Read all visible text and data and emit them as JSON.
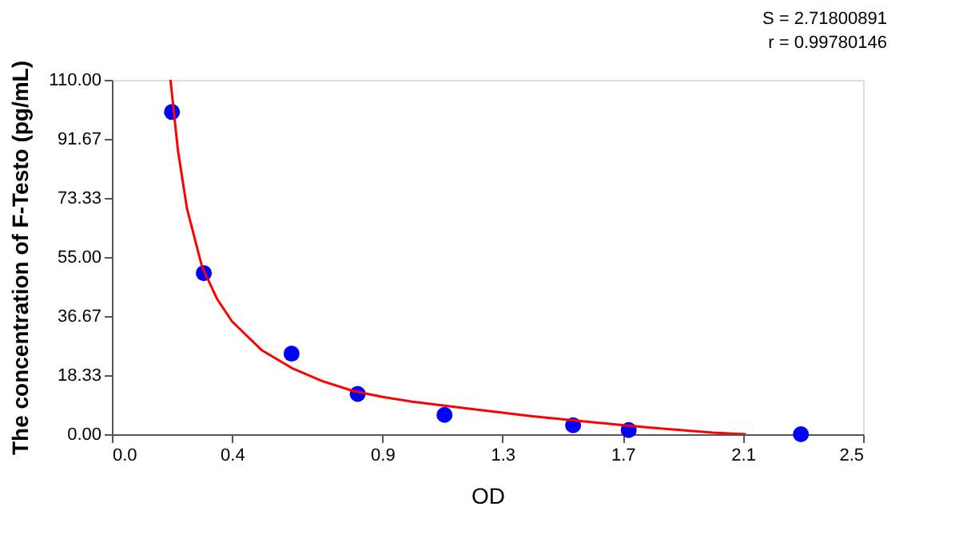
{
  "chart_data": {
    "type": "scatter",
    "xlabel": "OD",
    "ylabel": "The concentration of F-Testo (pg/mL)",
    "annotations": [
      "S = 2.71800891",
      "r = 0.99780146"
    ],
    "xlim": [
      0,
      2.5
    ],
    "ylim": [
      0,
      110
    ],
    "xticks": [
      {
        "value": 0,
        "label": "0.0"
      },
      0.4,
      0.9,
      1.3,
      1.7,
      2.1,
      2.5
    ],
    "yticks": [
      {
        "value": 0,
        "label": "0.00"
      },
      {
        "value": 18.33,
        "label": "18.33"
      },
      {
        "value": 36.67,
        "label": "36.67"
      },
      {
        "value": 55,
        "label": "55.00"
      },
      {
        "value": 73.33,
        "label": "73.33"
      },
      {
        "value": 91.67,
        "label": "91.67"
      },
      {
        "value": 110,
        "label": "110.00"
      }
    ],
    "grid": false,
    "marker": "circle",
    "series": [
      {
        "color": "#0000ff",
        "x": [
          0.2,
          0.306,
          0.598,
          0.818,
          1.107,
          1.535,
          1.72,
          2.293
        ],
        "values": [
          100,
          50,
          25,
          12.5,
          6,
          2.8,
          1.3,
          0
        ]
      },
      {
        "type": "line",
        "marker": "none",
        "color": "#ff0000",
        "line_style": "solid",
        "x": [
          0.195,
          0.22,
          0.25,
          0.3,
          0.35,
          0.4,
          0.5,
          0.6,
          0.7,
          0.8,
          0.9,
          1.0,
          1.2,
          1.4,
          1.6,
          1.8,
          2.0,
          2.11
        ],
        "values": [
          110,
          88,
          70,
          52,
          42,
          35,
          26,
          20.5,
          16.5,
          13.5,
          11.6,
          10.1,
          7.8,
          5.6,
          3.7,
          2.0,
          0.5,
          0
        ]
      }
    ]
  }
}
